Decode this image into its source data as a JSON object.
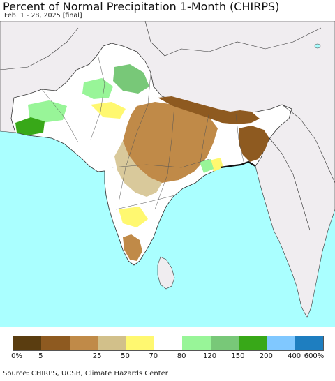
{
  "header": {
    "title": "Percent of Normal Precipitation 1-Month (CHIRPS)",
    "subtitle": "Feb. 1 - 28, 2025 [final]"
  },
  "legend": {
    "colors": [
      "#5a3d10",
      "#8e5a20",
      "#c08a48",
      "#d2c08a",
      "#fff870",
      "#ffffff",
      "#98f598",
      "#78c878",
      "#38a818",
      "#80c8ff",
      "#1e7ec0"
    ],
    "labels": [
      "0%",
      "5",
      "25",
      "50",
      "70",
      "80",
      "120",
      "150",
      "200",
      "400",
      "600%"
    ]
  },
  "footer": {
    "source": "Source: CHIRPS, UCSB, Climate Hazards Center"
  },
  "colors": {
    "ocean": "#aaffff",
    "outside_land": "#f0edf0",
    "border": "#333333"
  }
}
